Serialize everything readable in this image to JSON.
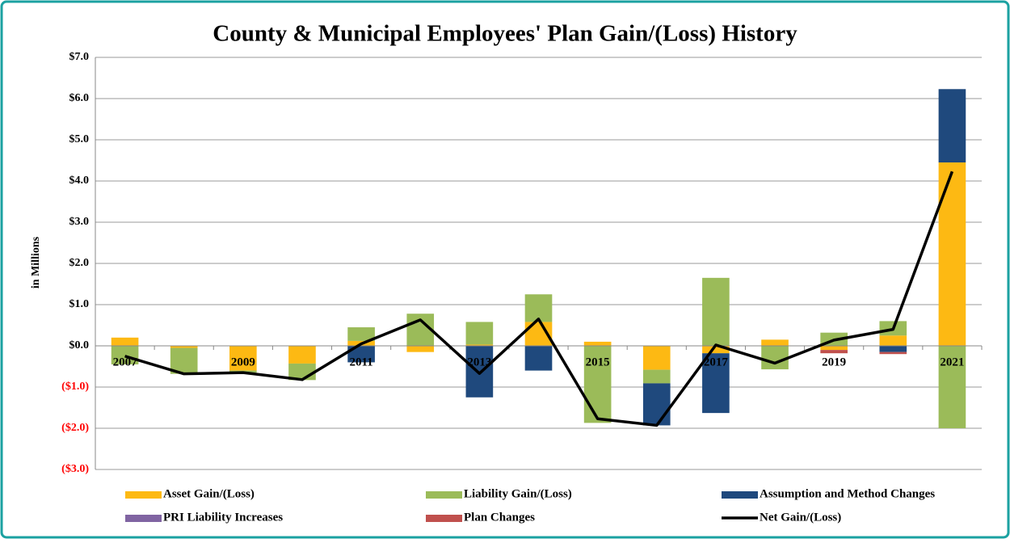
{
  "chart_data": {
    "type": "bar",
    "stacked": true,
    "title": "County & Municipal Employees' Plan Gain/(Loss) History",
    "y_label": "in Millions",
    "categories": [
      "2007",
      null,
      "2009",
      null,
      "2011",
      null,
      "2013",
      null,
      "2015",
      null,
      "2017",
      null,
      "2019",
      null,
      "2021"
    ],
    "series": [
      {
        "name": "Asset Gain/(Loss)",
        "color": "#fdb913",
        "values": [
          0.2,
          -0.05,
          -0.6,
          -0.43,
          0.12,
          -0.15,
          0.03,
          0.58,
          0.1,
          -0.58,
          -0.18,
          0.15,
          -0.1,
          0.25,
          4.45
        ]
      },
      {
        "name": "Liability Gain/(Loss)",
        "color": "#9bbb59",
        "values": [
          -0.45,
          -0.63,
          -0.05,
          -0.4,
          0.33,
          0.78,
          0.55,
          0.67,
          -1.87,
          -0.33,
          1.65,
          -0.57,
          0.32,
          0.35,
          -2.0
        ]
      },
      {
        "name": "Assumption and Method Changes",
        "color": "#1f497d",
        "values": [
          0,
          0,
          0,
          0,
          -0.4,
          0,
          -1.25,
          -0.6,
          0,
          -1.02,
          -1.45,
          0,
          0,
          -0.15,
          1.78
        ]
      },
      {
        "name": "PRI Liability Increases",
        "color": "#8064a2",
        "values": [
          0,
          0,
          0,
          0,
          0,
          0,
          0,
          0,
          0,
          0,
          0,
          0,
          0,
          0,
          0
        ]
      },
      {
        "name": "Plan Changes",
        "color": "#c0504d",
        "values": [
          0,
          0,
          0,
          0,
          0,
          0,
          0,
          0,
          0,
          0,
          0,
          0,
          -0.08,
          -0.05,
          0
        ]
      },
      {
        "name": "Net Gain/(Loss)",
        "color": "#000000",
        "type": "line",
        "values": [
          -0.25,
          -0.68,
          -0.65,
          -0.82,
          0.05,
          0.63,
          -0.67,
          0.65,
          -1.77,
          -1.93,
          0.02,
          -0.42,
          0.14,
          0.4,
          4.23
        ]
      }
    ],
    "ylim": [
      -3,
      7
    ],
    "yticks": [
      {
        "value": -3,
        "label": "($3.0)"
      },
      {
        "value": -2,
        "label": "($2.0)"
      },
      {
        "value": -1,
        "label": "($1.0)"
      },
      {
        "value": 0,
        "label": "$0.0"
      },
      {
        "value": 1,
        "label": "$1.0"
      },
      {
        "value": 2,
        "label": "$2.0"
      },
      {
        "value": 3,
        "label": "$3.0"
      },
      {
        "value": 4,
        "label": "$4.0"
      },
      {
        "value": 5,
        "label": "$5.0"
      },
      {
        "value": 6,
        "label": "$6.0"
      },
      {
        "value": 7,
        "label": "$7.0"
      }
    ],
    "negative_tick_color": "#ff0000",
    "grid": true,
    "legend": "bottom"
  }
}
